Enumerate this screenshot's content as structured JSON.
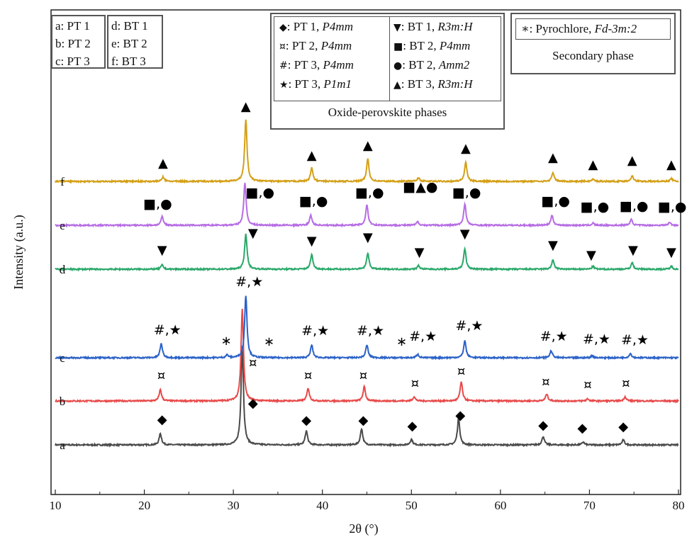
{
  "chart_data": {
    "type": "line",
    "xlabel": "2θ (°)",
    "ylabel": "Intensity (a.u.)",
    "xlim": [
      10,
      80
    ],
    "x_ticks": [
      10,
      20,
      30,
      40,
      50,
      60,
      70,
      80
    ],
    "y_ticks": "none",
    "grid": false,
    "series": [
      {
        "name": "a",
        "color": "#4a4a4a",
        "offset": 0,
        "peaks": [
          [
            21.8,
            16
          ],
          [
            31.0,
            140
          ],
          [
            38.2,
            20
          ],
          [
            44.4,
            23
          ],
          [
            50.0,
            8
          ],
          [
            55.3,
            38
          ],
          [
            64.8,
            12
          ],
          [
            69.3,
            4
          ],
          [
            73.8,
            7
          ]
        ],
        "markers": [
          {
            "sym": "◆",
            "x": 22.0,
            "lift": 30
          },
          {
            "sym": "◆",
            "x": 32.2,
            "lift": 53
          },
          {
            "sym": "◆",
            "x": 38.2,
            "lift": 29
          },
          {
            "sym": "◆",
            "x": 44.6,
            "lift": 29
          },
          {
            "sym": "◆",
            "x": 50.1,
            "lift": 21
          },
          {
            "sym": "◆",
            "x": 55.5,
            "lift": 36
          },
          {
            "sym": "◆",
            "x": 64.8,
            "lift": 22
          },
          {
            "sym": "◆",
            "x": 69.2,
            "lift": 18
          },
          {
            "sym": "◆",
            "x": 73.8,
            "lift": 20
          }
        ]
      },
      {
        "name": "b",
        "color": "#e84a4a",
        "offset": 62,
        "peaks": [
          [
            21.8,
            16
          ],
          [
            31.0,
            130
          ],
          [
            38.4,
            18
          ],
          [
            44.7,
            20
          ],
          [
            50.3,
            6
          ],
          [
            55.6,
            27
          ],
          [
            65.2,
            10
          ],
          [
            69.8,
            3
          ],
          [
            74.0,
            6
          ]
        ],
        "markers": [
          {
            "sym": "¤",
            "x": 21.9,
            "lift": 30
          },
          {
            "sym": "¤",
            "x": 32.2,
            "lift": 48
          },
          {
            "sym": "¤",
            "x": 38.4,
            "lift": 30
          },
          {
            "sym": "¤",
            "x": 44.6,
            "lift": 30
          },
          {
            "sym": "¤",
            "x": 50.4,
            "lift": 19
          },
          {
            "sym": "¤",
            "x": 55.6,
            "lift": 36
          },
          {
            "sym": "¤",
            "x": 65.1,
            "lift": 21
          },
          {
            "sym": "¤",
            "x": 69.8,
            "lift": 17
          },
          {
            "sym": "¤",
            "x": 74.1,
            "lift": 19
          }
        ]
      },
      {
        "name": "c",
        "color": "#2b62c8",
        "offset": 123,
        "peaks": [
          [
            21.9,
            20
          ],
          [
            29.3,
            4
          ],
          [
            31.4,
            88
          ],
          [
            38.8,
            18
          ],
          [
            45.0,
            18
          ],
          [
            50.7,
            5
          ],
          [
            56.0,
            24
          ],
          [
            65.7,
            10
          ],
          [
            70.3,
            3
          ],
          [
            74.6,
            6
          ]
        ],
        "markers": [
          {
            "sym": "#,★",
            "x": 22.6,
            "lift": 33
          },
          {
            "sym": "∗",
            "x": 29.2,
            "lift": 18
          },
          {
            "sym": "#,★",
            "x": 31.8,
            "lift": 101
          },
          {
            "sym": "∗",
            "x": 34.0,
            "lift": 17
          },
          {
            "sym": "#,★",
            "x": 39.2,
            "lift": 32
          },
          {
            "sym": "#,★",
            "x": 45.4,
            "lift": 32
          },
          {
            "sym": "∗",
            "x": 48.9,
            "lift": 17
          },
          {
            "sym": "#,★",
            "x": 51.3,
            "lift": 24
          },
          {
            "sym": "#,★",
            "x": 56.5,
            "lift": 39
          },
          {
            "sym": "#,★",
            "x": 66.0,
            "lift": 24
          },
          {
            "sym": "#,★",
            "x": 70.8,
            "lift": 20
          },
          {
            "sym": "#,★",
            "x": 75.1,
            "lift": 19
          }
        ]
      },
      {
        "name": "d",
        "color": "#2aa86a",
        "offset": 248,
        "peaks": [
          [
            22.0,
            6
          ],
          [
            31.4,
            50
          ],
          [
            38.8,
            21
          ],
          [
            45.1,
            23
          ],
          [
            50.8,
            5
          ],
          [
            56.0,
            29
          ],
          [
            65.9,
            13
          ],
          [
            70.4,
            4
          ],
          [
            74.8,
            9
          ],
          [
            79.2,
            4
          ]
        ],
        "markers": [
          {
            "sym": "▼",
            "x": 22.0,
            "lift": 21
          },
          {
            "sym": "▼",
            "x": 32.2,
            "lift": 45
          },
          {
            "sym": "▼",
            "x": 38.8,
            "lift": 34
          },
          {
            "sym": "▼",
            "x": 45.1,
            "lift": 39
          },
          {
            "sym": "▼",
            "x": 50.9,
            "lift": 18
          },
          {
            "sym": "▼",
            "x": 56.0,
            "lift": 44
          },
          {
            "sym": "▼",
            "x": 65.9,
            "lift": 28
          },
          {
            "sym": "▼",
            "x": 70.2,
            "lift": 14
          },
          {
            "sym": "▼",
            "x": 74.9,
            "lift": 21
          },
          {
            "sym": "▼",
            "x": 79.2,
            "lift": 18
          }
        ]
      },
      {
        "name": "e",
        "color": "#b66ce4",
        "offset": 310,
        "peaks": [
          [
            22.0,
            12
          ],
          [
            31.3,
            60
          ],
          [
            38.7,
            14
          ],
          [
            45.0,
            29
          ],
          [
            50.7,
            5
          ],
          [
            56.0,
            30
          ],
          [
            65.8,
            14
          ],
          [
            70.4,
            3
          ],
          [
            74.7,
            8
          ],
          [
            79.0,
            4
          ]
        ],
        "markers": [
          {
            "sym": "■,●",
            "x": 21.5,
            "lift": 24
          },
          {
            "sym": "■,●",
            "x": 33.0,
            "lift": 40
          },
          {
            "sym": "■,●",
            "x": 39.0,
            "lift": 28
          },
          {
            "sym": "■,●",
            "x": 45.3,
            "lift": 40
          },
          {
            "sym": "■▲●",
            "x": 51.0,
            "lift": 48
          },
          {
            "sym": "■,●",
            "x": 56.2,
            "lift": 40
          },
          {
            "sym": "■,●",
            "x": 66.2,
            "lift": 28
          },
          {
            "sym": "■,●",
            "x": 70.6,
            "lift": 20
          },
          {
            "sym": "■,●",
            "x": 75.0,
            "lift": 21
          },
          {
            "sym": "■,●",
            "x": 79.3,
            "lift": 20
          }
        ]
      },
      {
        "name": "f",
        "color": "#d4a017",
        "offset": 372,
        "peaks": [
          [
            22.1,
            6
          ],
          [
            31.4,
            87
          ],
          [
            38.8,
            19
          ],
          [
            45.1,
            32
          ],
          [
            50.8,
            5
          ],
          [
            56.1,
            27
          ],
          [
            65.9,
            12
          ],
          [
            70.4,
            3
          ],
          [
            74.8,
            8
          ],
          [
            79.2,
            4
          ]
        ],
        "markers": [
          {
            "sym": "▲",
            "x": 22.1,
            "lift": 20
          },
          {
            "sym": "▲",
            "x": 31.4,
            "lift": 100
          },
          {
            "sym": "▲",
            "x": 38.8,
            "lift": 31
          },
          {
            "sym": "▲",
            "x": 45.1,
            "lift": 45
          },
          {
            "sym": "▲",
            "x": 56.1,
            "lift": 41
          },
          {
            "sym": "▲",
            "x": 65.9,
            "lift": 28
          },
          {
            "sym": "▲",
            "x": 70.4,
            "lift": 18
          },
          {
            "sym": "▲",
            "x": 74.8,
            "lift": 24
          },
          {
            "sym": "▲",
            "x": 79.2,
            "lift": 18
          }
        ]
      }
    ]
  },
  "legend_samples": {
    "pt": [
      "a: PT 1",
      "b: PT 2",
      "c: PT 3"
    ],
    "bt": [
      "d: BT 1",
      "e: BT 2",
      "f: BT 3"
    ]
  },
  "legend_phases": {
    "left": [
      {
        "sym": "◆",
        "label": ": PT 1, ",
        "group": "P4mm"
      },
      {
        "sym": "¤",
        "label": ": PT 2, ",
        "group": "P4mm"
      },
      {
        "sym": "#",
        "label": ": PT 3, ",
        "group": "P4mm"
      },
      {
        "sym": "★",
        "label": ": PT 3, ",
        "group": "P1m1"
      }
    ],
    "right": [
      {
        "sym": "▼",
        "label": ": BT 1, ",
        "group": "R3m:H"
      },
      {
        "sym": "■",
        "label": ": BT 2, ",
        "group": "P4mm"
      },
      {
        "sym": "●",
        "label": ": BT 2, ",
        "group": "Amm2"
      },
      {
        "sym": "▲",
        "label": ": BT 3, ",
        "group": "R3m:H"
      }
    ],
    "title": "Oxide-perovskite phases"
  },
  "legend_secondary": {
    "sym": "∗",
    "label": ": Pyrochlore, ",
    "group": "Fd-3m:2",
    "title": "Secondary phase"
  }
}
